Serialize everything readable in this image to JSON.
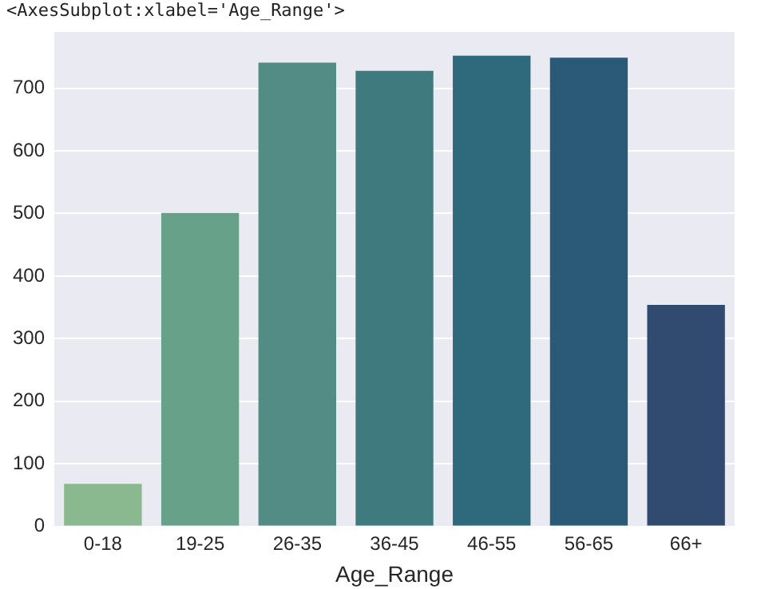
{
  "chart_data": {
    "type": "bar",
    "xlabel": "Age_Range",
    "annotations": [
      "<AxesSubplot:xlabel='Age_Range'>"
    ],
    "categories": [
      "0-18",
      "19-25",
      "26-35",
      "36-45",
      "46-55",
      "56-65",
      "66+"
    ],
    "values": [
      68,
      501,
      741,
      728,
      752,
      749,
      354
    ],
    "colors": [
      "#8ab88f",
      "#68a18a",
      "#538c84",
      "#3f7a7f",
      "#2e6a7b",
      "#2b5a78",
      "#314a70"
    ],
    "ylim": [
      0,
      790
    ],
    "yticks": [
      0,
      100,
      200,
      300,
      400,
      500,
      600,
      700
    ],
    "grid": "y",
    "legend": false
  }
}
